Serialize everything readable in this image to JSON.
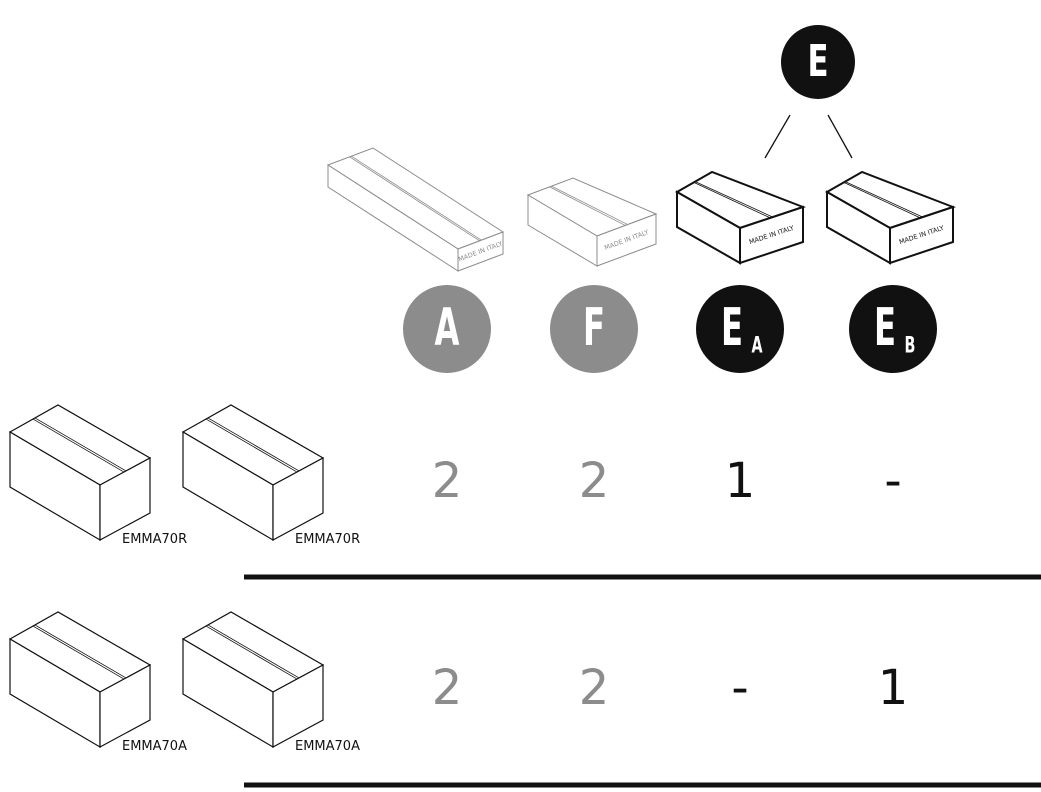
{
  "header": {
    "group_label": "E"
  },
  "packages": [
    {
      "label": "A",
      "box_text": "MADE IN ITALY"
    },
    {
      "label": "F",
      "box_text": "MADE IN ITALY"
    },
    {
      "label": "E",
      "sub": "A",
      "box_text": "MADE IN ITALY"
    },
    {
      "label": "E",
      "sub": "B",
      "box_text": "MADE IN ITALY"
    }
  ],
  "rows": [
    {
      "models": [
        "EMMA70R",
        "EMMA70R"
      ],
      "quantities": [
        2,
        2,
        1,
        "-"
      ]
    },
    {
      "models": [
        "EMMA70A",
        "EMMA70A"
      ],
      "quantities": [
        2,
        2,
        "-",
        1
      ]
    }
  ]
}
